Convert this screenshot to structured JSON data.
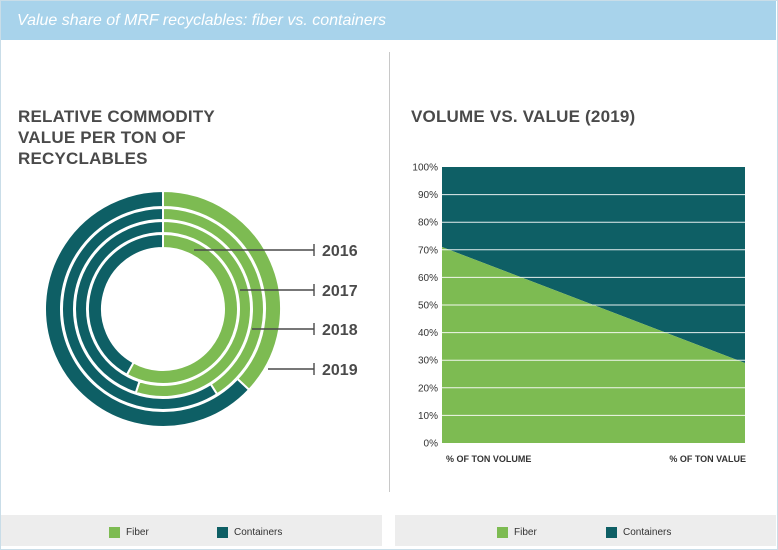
{
  "header": {
    "title": "Value share of MRF recyclables: fiber vs. containers"
  },
  "colors": {
    "fiber": "#7dbb52",
    "containers": "#0e5f65",
    "header_bg": "#a8d3eb"
  },
  "legend": [
    {
      "key": "fiber",
      "label": "Fiber"
    },
    {
      "key": "containers",
      "label": "Containers"
    }
  ],
  "chart_data": [
    {
      "type": "donut",
      "title": "RELATIVE COMMODITY VALUE PER TON OF RECYCLABLES",
      "rings": [
        {
          "label": "2016",
          "fiber": 58,
          "containers": 42
        },
        {
          "label": "2017",
          "fiber": 55,
          "containers": 45
        },
        {
          "label": "2018",
          "fiber": 41,
          "containers": 59
        },
        {
          "label": "2019",
          "fiber": 37,
          "containers": 63
        }
      ],
      "ring_order": "inner-to-outer",
      "legend_placement": "bottom"
    },
    {
      "type": "area",
      "title": "VOLUME VS. VALUE (2019)",
      "categories": [
        "% OF TON VOLUME",
        "% OF TON VALUE"
      ],
      "series": [
        {
          "name": "Fiber",
          "values": [
            71,
            29
          ]
        },
        {
          "name": "Containers",
          "values": [
            29,
            71
          ]
        }
      ],
      "stacked": true,
      "ylim": [
        0,
        100
      ],
      "yticks": [
        "0%",
        "10%",
        "20%",
        "30%",
        "40%",
        "50%",
        "60%",
        "70%",
        "80%",
        "90%",
        "100%"
      ],
      "grid": true,
      "legend_placement": "bottom"
    }
  ]
}
